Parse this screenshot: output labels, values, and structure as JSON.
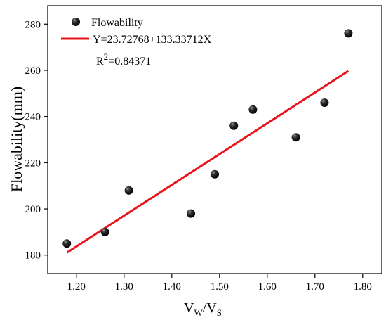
{
  "chart_data": {
    "type": "scatter",
    "ylabel": "Flowability(mm)",
    "xlabel": {
      "main": "V",
      "sub1": "W",
      "slash": "/V",
      "sub2": "S"
    },
    "xlim": [
      1.14,
      1.84
    ],
    "ylim": [
      172,
      288
    ],
    "x_ticks": [
      "1.20",
      "1.30",
      "1.40",
      "1.50",
      "1.60",
      "1.70",
      "1.80"
    ],
    "y_ticks": [
      "180",
      "200",
      "220",
      "240",
      "260",
      "280"
    ],
    "series": [
      {
        "name": "Flowability",
        "marker_color": "#111111",
        "points": [
          {
            "x": 1.18,
            "y": 185
          },
          {
            "x": 1.26,
            "y": 190
          },
          {
            "x": 1.31,
            "y": 208
          },
          {
            "x": 1.44,
            "y": 198
          },
          {
            "x": 1.49,
            "y": 215
          },
          {
            "x": 1.53,
            "y": 236
          },
          {
            "x": 1.57,
            "y": 243
          },
          {
            "x": 1.66,
            "y": 231
          },
          {
            "x": 1.72,
            "y": 246
          },
          {
            "x": 1.77,
            "y": 276
          }
        ]
      }
    ],
    "fit": {
      "label": "Y=23.72768+133.33712X",
      "intercept": 23.72768,
      "slope": 133.33712,
      "x_range": [
        1.18,
        1.77
      ],
      "color": "#e8141b"
    },
    "r2": {
      "prefix": "R",
      "sup": "2",
      "value": "=0.84371"
    },
    "legend_position": "top-left"
  }
}
